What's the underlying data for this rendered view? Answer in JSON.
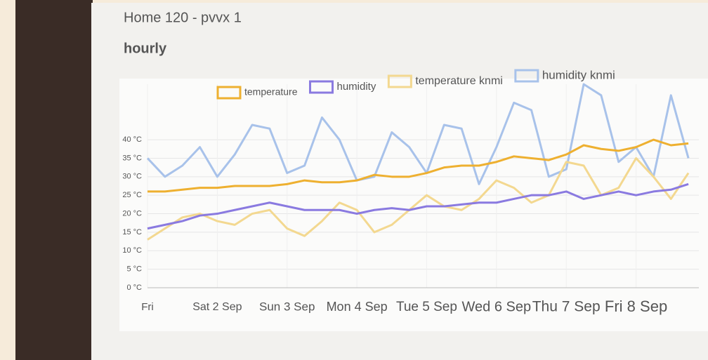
{
  "chart_data": {
    "type": "line",
    "title": "Home 120 - pvvx 1",
    "subtitle": "hourly",
    "x": [
      0,
      0.25,
      0.5,
      0.75,
      1,
      1.25,
      1.5,
      1.75,
      2,
      2.25,
      2.5,
      2.75,
      3,
      3.25,
      3.5,
      3.75,
      4,
      4.25,
      4.5,
      4.75,
      5,
      5.25,
      5.5,
      5.75,
      6,
      6.25,
      6.5,
      6.75,
      7,
      7.25,
      7.5,
      7.75
    ],
    "xlim": [
      0,
      7.9
    ],
    "xticks": [
      {
        "value": 0,
        "label": "Fri"
      },
      {
        "value": 1,
        "label": "Sat 2 Sep"
      },
      {
        "value": 2,
        "label": "Sun 3 Sep"
      },
      {
        "value": 3,
        "label": "Mon 4 Sep"
      },
      {
        "value": 4,
        "label": "Tue 5 Sep"
      },
      {
        "value": 5,
        "label": "Wed 6 Sep"
      },
      {
        "value": 6,
        "label": "Thu 7 Sep"
      },
      {
        "value": 7,
        "label": "Fri 8 Sep"
      }
    ],
    "ylim": [
      0,
      55
    ],
    "yticks": [
      {
        "value": 0,
        "label": "0 °C"
      },
      {
        "value": 5,
        "label": "5 °C"
      },
      {
        "value": 10,
        "label": "10 °C"
      },
      {
        "value": 15,
        "label": "15 °C"
      },
      {
        "value": 20,
        "label": "20 °C"
      },
      {
        "value": 25,
        "label": "25 °C"
      },
      {
        "value": 30,
        "label": "30 °C"
      },
      {
        "value": 35,
        "label": "35 °C"
      },
      {
        "value": 40,
        "label": "40 °C"
      }
    ],
    "grid": true,
    "series": [
      {
        "name": "temperature",
        "color": "#eeb030",
        "values": [
          26,
          26,
          26.5,
          27,
          27,
          27.5,
          27.5,
          27.5,
          28,
          29,
          28.5,
          28.5,
          29,
          30.5,
          30,
          30,
          31,
          32.5,
          33,
          33,
          34,
          35.5,
          35,
          34.5,
          36,
          38.5,
          37.5,
          37,
          38,
          40,
          38.5,
          39
        ]
      },
      {
        "name": "humidity",
        "color": "#8a7ae0",
        "values": [
          16,
          17,
          18,
          19.5,
          20,
          21,
          22,
          23,
          22,
          21,
          21,
          21,
          20,
          21,
          21.5,
          21,
          22,
          22,
          22.5,
          23,
          23,
          24,
          25,
          25,
          26,
          24,
          25,
          26,
          25,
          26,
          26.5,
          28
        ]
      },
      {
        "name": "temperature knmi",
        "color": "#f3d890",
        "values": [
          13,
          16,
          19,
          20,
          18,
          17,
          20,
          21,
          16,
          14,
          18,
          23,
          21,
          15,
          17,
          21,
          25,
          22,
          21,
          24,
          29,
          27,
          23,
          25,
          34,
          33,
          25,
          27,
          35,
          30,
          24,
          31
        ]
      },
      {
        "name": "humidity knmi",
        "color": "#a8c2ea",
        "values": [
          35,
          30,
          33,
          38,
          30,
          36,
          44,
          43,
          31,
          33,
          46,
          40,
          29,
          30,
          42,
          38,
          31,
          44,
          43,
          28,
          38,
          50,
          48,
          30,
          32,
          55,
          52,
          34,
          38,
          30,
          52,
          35
        ]
      }
    ]
  }
}
